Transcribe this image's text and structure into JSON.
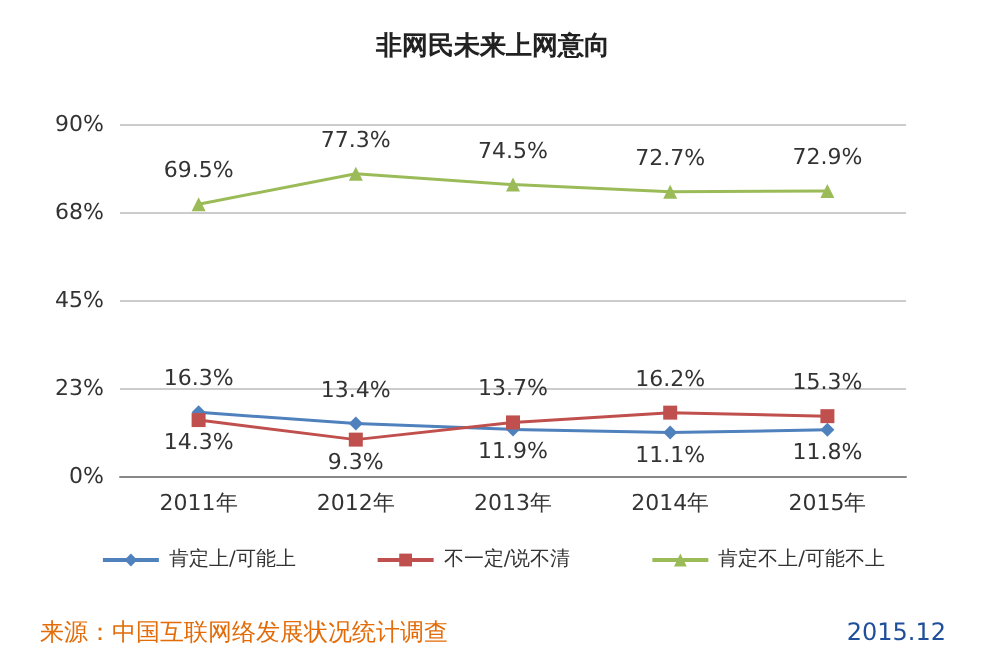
{
  "chart_data": {
    "type": "line",
    "title": "非网民未来上网意向",
    "categories": [
      "2011年",
      "2012年",
      "2013年",
      "2014年",
      "2015年"
    ],
    "series": [
      {
        "name": "肯定上/可能上",
        "color": "#4f81bd",
        "marker": "diamond",
        "values": [
          16.3,
          13.4,
          11.9,
          11.1,
          11.8
        ],
        "value_labels": [
          "16.3%",
          "13.4%",
          "11.9%",
          "11.1%",
          "11.8%"
        ]
      },
      {
        "name": "不一定/说不清",
        "color": "#c0504d",
        "marker": "square",
        "values": [
          14.3,
          9.3,
          13.7,
          16.2,
          15.3
        ],
        "value_labels": [
          "14.3%",
          "9.3%",
          "13.7%",
          "16.2%",
          "15.3%"
        ]
      },
      {
        "name": "肯定不上/可能不上",
        "color": "#9bbb59",
        "marker": "triangle",
        "values": [
          69.5,
          77.3,
          74.5,
          72.7,
          72.9
        ],
        "value_labels": [
          "69.5%",
          "77.3%",
          "74.5%",
          "72.7%",
          "72.9%"
        ]
      }
    ],
    "ylim": [
      0,
      90
    ],
    "yticks": [
      {
        "value": 0,
        "label": "0%"
      },
      {
        "value": 22.5,
        "label": "23%"
      },
      {
        "value": 45,
        "label": "45%"
      },
      {
        "value": 67.5,
        "label": "68%"
      },
      {
        "value": 90,
        "label": "90%"
      }
    ],
    "grid": "y",
    "legend": "bottom",
    "annotations": [
      "来源：中国互联网络发展状况统计调查",
      "2015.12"
    ]
  }
}
